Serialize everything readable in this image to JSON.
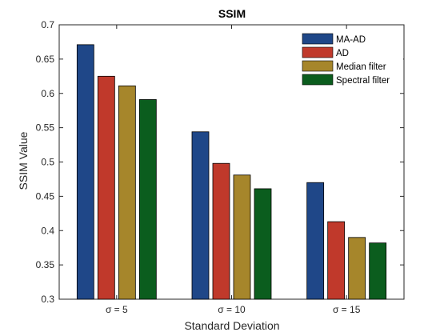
{
  "chart_data": {
    "type": "bar",
    "title": "SSIM",
    "xlabel": "Standard Deviation",
    "ylabel": "SSIM Value",
    "categories": [
      "σ = 5",
      "σ = 10",
      "σ = 15"
    ],
    "ylim": [
      0.3,
      0.7
    ],
    "yticks": [
      "0.3",
      "0.35",
      "0.4",
      "0.45",
      "0.5",
      "0.55",
      "0.6",
      "0.65",
      "0.7"
    ],
    "grid": false,
    "legend_position": "top-right",
    "series": [
      {
        "name": "MA-AD",
        "color": "#1f4788",
        "values": [
          0.671,
          0.544,
          0.47
        ]
      },
      {
        "name": "AD",
        "color": "#c0392b",
        "values": [
          0.625,
          0.498,
          0.413
        ]
      },
      {
        "name": "Median filter",
        "color": "#a6862b",
        "values": [
          0.611,
          0.481,
          0.39
        ]
      },
      {
        "name": "Spectral filter",
        "color": "#0b5d1e",
        "values": [
          0.591,
          0.461,
          0.382
        ]
      }
    ]
  }
}
